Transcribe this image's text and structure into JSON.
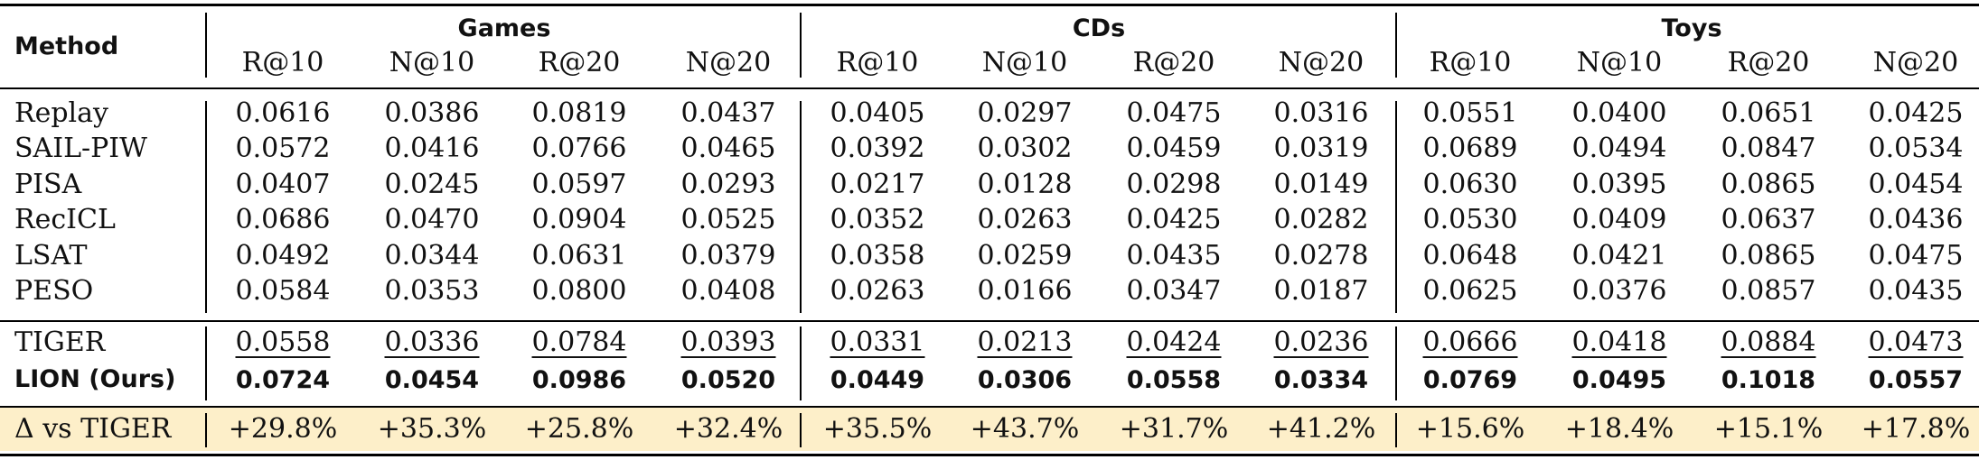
{
  "table": {
    "method_header": "Method",
    "groups": [
      "Games",
      "CDs",
      "Toys"
    ],
    "metrics": [
      "R@10",
      "N@10",
      "R@20",
      "N@20"
    ],
    "baselines": [
      {
        "method": "Replay",
        "values": [
          "0.0616",
          "0.0386",
          "0.0819",
          "0.0437",
          "0.0405",
          "0.0297",
          "0.0475",
          "0.0316",
          "0.0551",
          "0.0400",
          "0.0651",
          "0.0425"
        ]
      },
      {
        "method": "SAIL-PIW",
        "values": [
          "0.0572",
          "0.0416",
          "0.0766",
          "0.0465",
          "0.0392",
          "0.0302",
          "0.0459",
          "0.0319",
          "0.0689",
          "0.0494",
          "0.0847",
          "0.0534"
        ]
      },
      {
        "method": "PISA",
        "values": [
          "0.0407",
          "0.0245",
          "0.0597",
          "0.0293",
          "0.0217",
          "0.0128",
          "0.0298",
          "0.0149",
          "0.0630",
          "0.0395",
          "0.0865",
          "0.0454"
        ]
      },
      {
        "method": "RecICL",
        "values": [
          "0.0686",
          "0.0470",
          "0.0904",
          "0.0525",
          "0.0352",
          "0.0263",
          "0.0425",
          "0.0282",
          "0.0530",
          "0.0409",
          "0.0637",
          "0.0436"
        ]
      },
      {
        "method": "LSAT",
        "values": [
          "0.0492",
          "0.0344",
          "0.0631",
          "0.0379",
          "0.0358",
          "0.0259",
          "0.0435",
          "0.0278",
          "0.0648",
          "0.0421",
          "0.0865",
          "0.0475"
        ]
      },
      {
        "method": "PESO",
        "values": [
          "0.0584",
          "0.0353",
          "0.0800",
          "0.0408",
          "0.0263",
          "0.0166",
          "0.0347",
          "0.0187",
          "0.0625",
          "0.0376",
          "0.0857",
          "0.0435"
        ]
      }
    ],
    "tiger": {
      "method": "TIGER",
      "values": [
        "0.0558",
        "0.0336",
        "0.0784",
        "0.0393",
        "0.0331",
        "0.0213",
        "0.0424",
        "0.0236",
        "0.0666",
        "0.0418",
        "0.0884",
        "0.0473"
      ]
    },
    "ours": {
      "method": "LION (Ours)",
      "values": [
        "0.0724",
        "0.0454",
        "0.0986",
        "0.0520",
        "0.0449",
        "0.0306",
        "0.0558",
        "0.0334",
        "0.0769",
        "0.0495",
        "0.1018",
        "0.0557"
      ]
    },
    "delta": {
      "method": "Δ vs TIGER",
      "values": [
        "+29.8%",
        "+35.3%",
        "+25.8%",
        "+32.4%",
        "+35.5%",
        "+43.7%",
        "+31.7%",
        "+41.2%",
        "+15.6%",
        "+18.4%",
        "+15.1%",
        "+17.8%"
      ]
    },
    "highlight_color": "#fdefc9"
  }
}
